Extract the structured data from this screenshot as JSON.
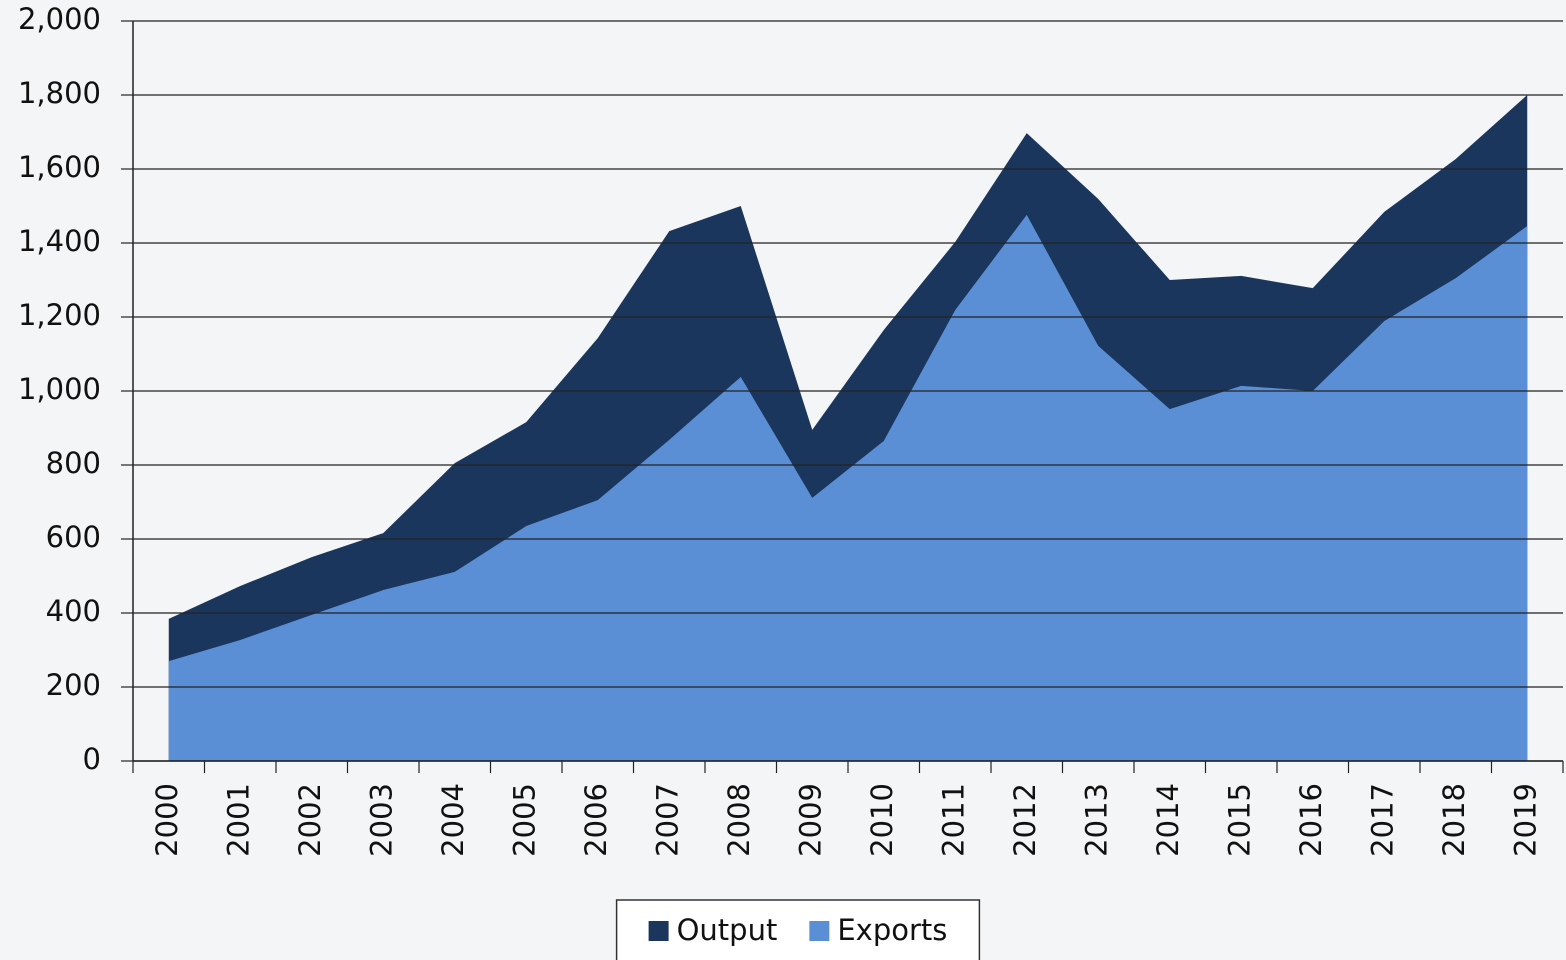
{
  "chart_data": {
    "type": "area",
    "categories": [
      "2000",
      "2001",
      "2002",
      "2003",
      "2004",
      "2005",
      "2006",
      "2007",
      "2008",
      "2009",
      "2010",
      "2011",
      "2012",
      "2013",
      "2014",
      "2015",
      "2016",
      "2017",
      "2018",
      "2019"
    ],
    "series": [
      {
        "name": "Output",
        "color": "#1b365d",
        "values": [
          384,
          473,
          551,
          616,
          805,
          916,
          1143,
          1432,
          1500,
          895,
          1165,
          1403,
          1697,
          1519,
          1300,
          1311,
          1278,
          1484,
          1627,
          1800
        ]
      },
      {
        "name": "Exports",
        "color": "#5a8fd6",
        "values": [
          270,
          327,
          395,
          462,
          511,
          635,
          705,
          868,
          1038,
          711,
          865,
          1219,
          1476,
          1122,
          951,
          1014,
          1000,
          1189,
          1305,
          1446
        ]
      }
    ],
    "ylim": [
      0,
      2000
    ],
    "yticks": [
      0,
      200,
      400,
      600,
      800,
      {
        "value": 1000,
        "label": "1,000"
      },
      {
        "value": 1200,
        "label": "1,200"
      },
      {
        "value": 1400,
        "label": "1,400"
      },
      {
        "value": 1600,
        "label": "1,600"
      },
      {
        "value": 1800,
        "label": "1,800"
      },
      {
        "value": 2000,
        "label": "2,000"
      }
    ],
    "grid": true,
    "legend": "bottom"
  }
}
